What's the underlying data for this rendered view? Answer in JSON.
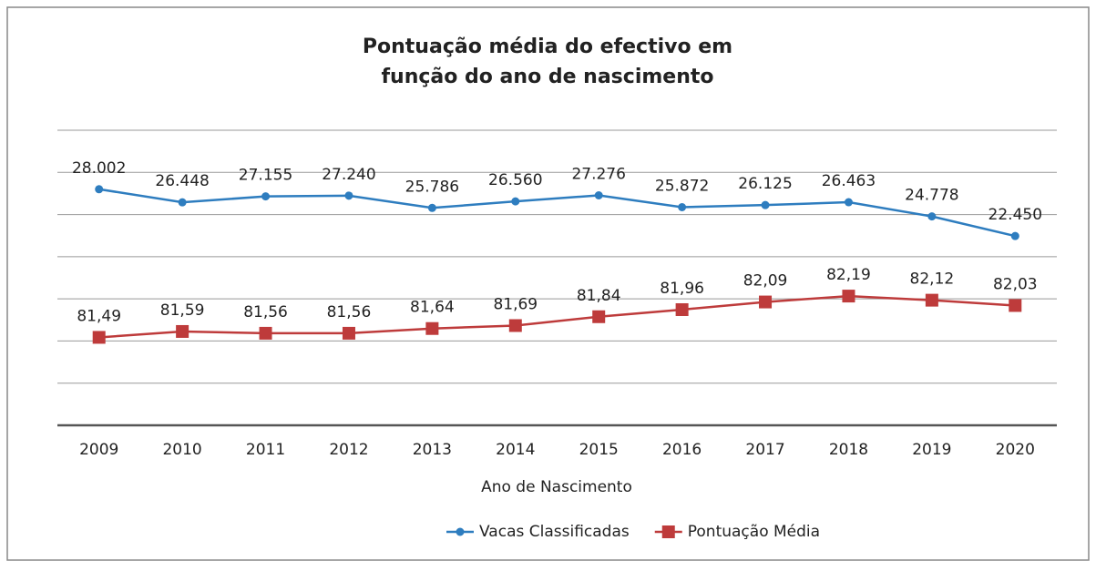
{
  "chart_data": {
    "type": "line",
    "title": [
      "Pontuação média do efectivo em",
      "função do ano de nascimento"
    ],
    "x_label": "Ano de Nascimento",
    "categories": [
      "2009",
      "2010",
      "2011",
      "2012",
      "2013",
      "2014",
      "2015",
      "2016",
      "2017",
      "2018",
      "2019",
      "2020"
    ],
    "series": [
      {
        "name": "Vacas Classificadas",
        "color": "#2e7dbf",
        "marker": "circle",
        "values": [
          28002,
          26448,
          27155,
          27240,
          25786,
          26560,
          27276,
          25872,
          26125,
          26463,
          24778,
          22450
        ],
        "value_labels": [
          "28.002",
          "26.448",
          "27.155",
          "27.240",
          "25.786",
          "26.560",
          "27.276",
          "25.872",
          "26.125",
          "26.463",
          "24.778",
          "22.450"
        ]
      },
      {
        "name": "Pontuação Média",
        "color": "#be3b3b",
        "marker": "square",
        "axis": "y2",
        "values": [
          81.49,
          81.59,
          81.56,
          81.56,
          81.64,
          81.69,
          81.84,
          81.96,
          82.09,
          82.19,
          82.12,
          82.03
        ],
        "value_labels": [
          "81,49",
          "81,59",
          "81,56",
          "81,56",
          "81,64",
          "81,69",
          "81,84",
          "81,96",
          "82,09",
          "82,19",
          "82,12",
          "82,03"
        ]
      }
    ],
    "ylim": [
      0,
      35000
    ],
    "yticks": [
      0,
      5000,
      10000,
      15000,
      20000,
      25000,
      30000,
      35000
    ],
    "y2lim": [
      80,
      85
    ],
    "grid": true,
    "legend": "bottom"
  }
}
